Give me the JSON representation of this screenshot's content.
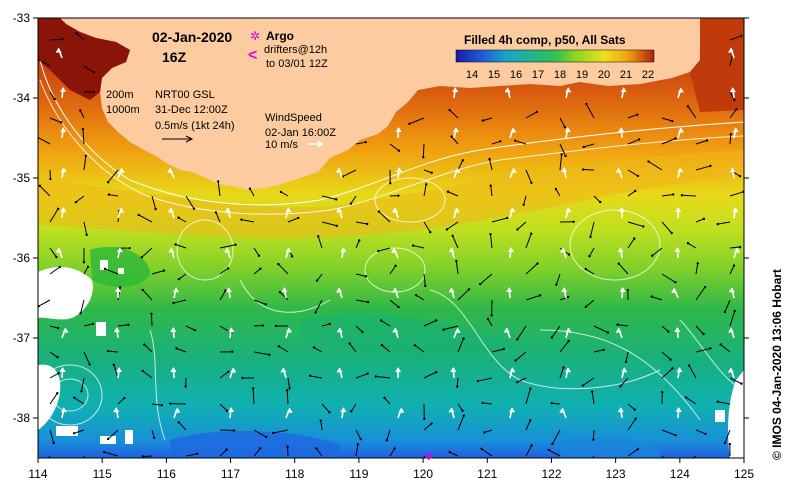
{
  "header": {
    "date": "02-Jan-2020",
    "hour": "16Z"
  },
  "argo": {
    "label": "Argo",
    "drifters": "drifters@12h",
    "to": "to 03/01 12Z",
    "symbol": "✲",
    "arrow": "<",
    "color": "#e000e0"
  },
  "colorbar": {
    "title": "Filled 4h comp, p50, All Sats",
    "ticks": [
      "14",
      "15",
      "16",
      "17",
      "18",
      "19",
      "20",
      "21",
      "22"
    ],
    "values": [
      14,
      15,
      16,
      17,
      18,
      19,
      20,
      21,
      22
    ],
    "colors": [
      "#1a1aa0",
      "#1f55d8",
      "#1aa0c8",
      "#20b494",
      "#30c050",
      "#9ad820",
      "#f0e020",
      "#f0a010",
      "#b02010"
    ]
  },
  "legend": {
    "isobath_shallow": "200m",
    "isobath_deep": "1000m",
    "current_source": "NRT00 GSL",
    "current_time": "31-Dec 12:00Z",
    "current_scale": "0.5m/s (1kt 24h)",
    "wind_title": "WindSpeed",
    "wind_time": "02-Jan 16:00Z",
    "wind_scale": "10 m/s"
  },
  "axes": {
    "x_ticks": [
      "114",
      "115",
      "116",
      "117",
      "118",
      "119",
      "120",
      "121",
      "122",
      "123",
      "124",
      "125"
    ],
    "x_values": [
      114,
      115,
      116,
      117,
      118,
      119,
      120,
      121,
      122,
      123,
      124,
      125
    ],
    "y_ticks": [
      "-33",
      "-34",
      "-35",
      "-36",
      "-37",
      "-38"
    ],
    "y_values": [
      -33,
      -34,
      -35,
      -36,
      -37,
      -38
    ],
    "lon_range": [
      114,
      125
    ],
    "lat_range": [
      -38.5,
      -33
    ]
  },
  "credit": "© IMOS 04-Jan-2020 13:06 Hobart",
  "colors": {
    "land": "#fccca0",
    "cloud": "#ffffff",
    "isobath": "#ffffff",
    "contour": "#ffffff",
    "current_arrow": "#000000",
    "wind_arrow": "#ffffff"
  }
}
